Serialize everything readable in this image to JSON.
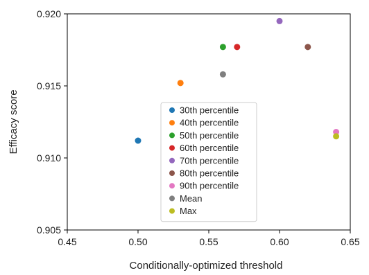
{
  "chart_data": {
    "type": "scatter",
    "title": "",
    "xlabel": "Conditionally-optimized threshold",
    "ylabel": "Efficacy score",
    "xlim": [
      0.45,
      0.65
    ],
    "ylim": [
      0.905,
      0.92
    ],
    "xticks": [
      0.45,
      0.5,
      0.55,
      0.6,
      0.65
    ],
    "xtick_labels": [
      "0.45",
      "0.50",
      "0.55",
      "0.60",
      "0.65"
    ],
    "yticks": [
      0.905,
      0.91,
      0.915,
      0.92
    ],
    "ytick_labels": [
      "0.905",
      "0.910",
      "0.915",
      "0.920"
    ],
    "grid": false,
    "legend_position": "center",
    "series": [
      {
        "name": "30th percentile",
        "color": "#1f77b4",
        "x": [
          0.5
        ],
        "y": [
          0.9112
        ]
      },
      {
        "name": "40th percentile",
        "color": "#ff7f0e",
        "x": [
          0.53
        ],
        "y": [
          0.9152
        ]
      },
      {
        "name": "50th percentile",
        "color": "#2ca02c",
        "x": [
          0.56
        ],
        "y": [
          0.9177
        ]
      },
      {
        "name": "60th percentile",
        "color": "#d62728",
        "x": [
          0.57
        ],
        "y": [
          0.9177
        ]
      },
      {
        "name": "70th percentile",
        "color": "#9467bd",
        "x": [
          0.6
        ],
        "y": [
          0.9195
        ]
      },
      {
        "name": "80th percentile",
        "color": "#8c564b",
        "x": [
          0.62
        ],
        "y": [
          0.9177
        ]
      },
      {
        "name": "90th percentile",
        "color": "#e377c2",
        "x": [
          0.64
        ],
        "y": [
          0.9118
        ]
      },
      {
        "name": "Mean",
        "color": "#7f7f7f",
        "x": [
          0.56
        ],
        "y": [
          0.9158
        ]
      },
      {
        "name": "Max",
        "color": "#bcbd22",
        "x": [
          0.64
        ],
        "y": [
          0.9115
        ]
      }
    ]
  }
}
